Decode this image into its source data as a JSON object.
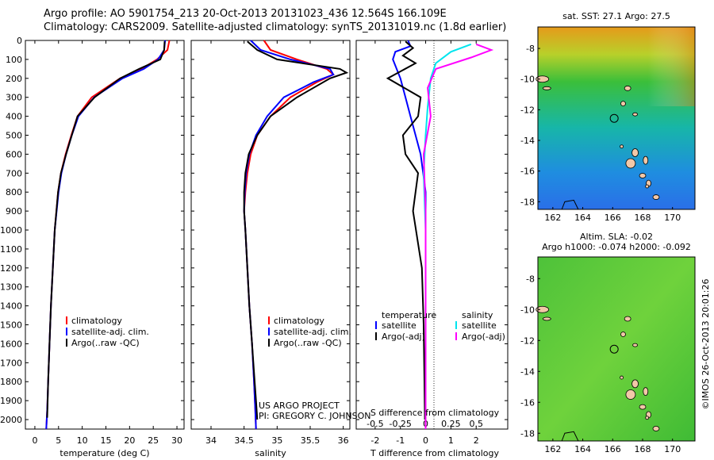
{
  "title": {
    "line1": "Argo profile: AO 5901754_213 20-Oct-2013 20131023_436 12.564S 166.109E",
    "line2": "Climatology: CARS2009. Satellite-adjusted climatology: synTS_20131019.nc (1.8d earlier)"
  },
  "colors": {
    "climatology": "#ff0000",
    "satellite": "#0000ff",
    "argo": "#000000",
    "salinity_satellite": "#00e5ee",
    "salinity_argo": "#ff00ff"
  },
  "depth_axis": {
    "min": 0,
    "max": 2050,
    "ticks": [
      "0",
      "100",
      "200",
      "300",
      "400",
      "500",
      "600",
      "700",
      "800",
      "900",
      "1000",
      "1100",
      "1200",
      "1300",
      "1400",
      "1500",
      "1600",
      "1700",
      "1800",
      "1900",
      "2000"
    ]
  },
  "chart_data": [
    {
      "type": "line",
      "name": "temperature-profile",
      "xlabel": "temperature (deg C)",
      "xlim": [
        -2,
        31.5
      ],
      "xticks": [
        "0",
        "5",
        "10",
        "15",
        "20",
        "25",
        "30"
      ],
      "series": [
        {
          "name": "climatology",
          "x": [
            28.4,
            28.0,
            25.8,
            22.5,
            18.0,
            12.0,
            9.0,
            7.7,
            6.5,
            5.5,
            4.9,
            4.2,
            3.8,
            3.4,
            3.1,
            2.8,
            2.6,
            2.4
          ],
          "depth": [
            0,
            50,
            100,
            150,
            200,
            300,
            400,
            500,
            600,
            700,
            800,
            1000,
            1200,
            1400,
            1600,
            1800,
            1950,
            2050
          ]
        },
        {
          "name": "satellite",
          "x": [
            27.5,
            27.3,
            26.0,
            23.0,
            18.5,
            12.5,
            9.2,
            7.8,
            6.6,
            5.6,
            5.0,
            4.2,
            3.8,
            3.4,
            3.1,
            2.8,
            2.6,
            2.4
          ],
          "depth": [
            0,
            50,
            100,
            150,
            200,
            300,
            400,
            500,
            600,
            700,
            800,
            1000,
            1200,
            1400,
            1600,
            1800,
            1950,
            2050
          ]
        },
        {
          "name": "argo",
          "x": [
            27.4,
            27.3,
            26.5,
            22.0,
            18.0,
            12.6,
            9.0,
            7.8,
            6.6,
            5.5,
            4.9,
            4.2,
            3.8,
            3.4,
            3.1,
            2.8,
            2.6
          ],
          "depth": [
            5,
            50,
            100,
            150,
            200,
            300,
            400,
            500,
            600,
            700,
            800,
            1000,
            1200,
            1400,
            1600,
            1800,
            1990
          ]
        }
      ],
      "legend": [
        "climatology",
        "satellite-adj. clim.",
        "Argo(..raw -QC)"
      ]
    },
    {
      "type": "line",
      "name": "salinity-profile",
      "xlabel": "salinity",
      "xlim": [
        33.7,
        36.1
      ],
      "xticks": [
        "34",
        "34.5",
        "35",
        "35.5",
        "36"
      ],
      "series": [
        {
          "name": "climatology",
          "x": [
            34.8,
            34.9,
            35.3,
            35.75,
            35.85,
            35.6,
            35.2,
            34.9,
            34.7,
            34.6,
            34.55,
            34.52,
            34.5,
            34.52,
            34.55,
            34.58,
            34.62,
            34.65,
            34.67,
            34.68
          ],
          "depth": [
            0,
            50,
            100,
            150,
            180,
            220,
            300,
            400,
            500,
            600,
            700,
            800,
            900,
            1000,
            1200,
            1400,
            1600,
            1800,
            1950,
            2050
          ]
        },
        {
          "name": "satellite",
          "x": [
            34.6,
            34.75,
            35.2,
            35.8,
            35.85,
            35.55,
            35.1,
            34.85,
            34.68,
            34.58,
            34.53,
            34.51,
            34.5,
            34.52,
            34.55,
            34.58,
            34.62,
            34.65,
            34.67,
            34.68
          ],
          "depth": [
            0,
            50,
            100,
            150,
            180,
            220,
            300,
            400,
            500,
            600,
            700,
            800,
            900,
            1000,
            1200,
            1400,
            1600,
            1800,
            1950,
            2050
          ]
        },
        {
          "name": "argo",
          "x": [
            34.55,
            34.7,
            35.0,
            35.95,
            36.05,
            35.8,
            35.3,
            34.9,
            34.7,
            34.57,
            34.52,
            34.5,
            34.5,
            34.52,
            34.55,
            34.58,
            34.62,
            34.66,
            34.68,
            34.7
          ],
          "depth": [
            5,
            50,
            100,
            150,
            170,
            200,
            300,
            400,
            500,
            600,
            700,
            800,
            900,
            1000,
            1200,
            1400,
            1600,
            1800,
            1900,
            2000
          ]
        }
      ],
      "legend": [
        "climatology",
        "satellite-adj. clim.",
        "Argo(..raw -QC)"
      ]
    },
    {
      "type": "line",
      "name": "difference-profile",
      "xlabel_top": "S difference from climatology",
      "xlabel": "T difference from climatology",
      "t_xlim": [
        -2.75,
        3.25
      ],
      "t_xticks": [
        "-2",
        "-1",
        "0",
        "1",
        "2"
      ],
      "s_xticks": [
        "-0.5",
        "-0.25",
        "0",
        "0.25",
        "0.5"
      ],
      "series": [
        {
          "name": "temperature satellite",
          "x": [
            -0.7,
            -0.6,
            -1.2,
            -1.3,
            -1.0,
            -0.8,
            -0.6,
            -0.4,
            -0.2,
            -0.1,
            0,
            0,
            0,
            0,
            0
          ],
          "depth": [
            0,
            30,
            60,
            100,
            200,
            300,
            400,
            500,
            600,
            700,
            800,
            1000,
            1400,
            1800,
            2050
          ]
        },
        {
          "name": "temperature argo",
          "x": [
            -0.8,
            -0.5,
            -0.9,
            -0.4,
            -1.5,
            -0.2,
            -0.3,
            -0.9,
            -0.8,
            -0.3,
            -0.5,
            -0.15,
            -0.08,
            -0.05,
            -0.03
          ],
          "depth": [
            5,
            40,
            80,
            120,
            200,
            300,
            400,
            500,
            600,
            700,
            900,
            1200,
            1500,
            1800,
            2000
          ]
        },
        {
          "name": "salinity satellite",
          "x": [
            0.45,
            0.25,
            0.1,
            0.05,
            0.02,
            0.0,
            -0.02,
            0,
            0,
            0
          ],
          "depth": [
            20,
            60,
            120,
            200,
            350,
            500,
            700,
            1000,
            1500,
            2050
          ]
        },
        {
          "name": "salinity argo",
          "x": [
            0.5,
            0.65,
            0.45,
            0.1,
            0.02,
            0.05,
            -0.02,
            0,
            0,
            0
          ],
          "depth": [
            20,
            50,
            90,
            150,
            250,
            400,
            600,
            900,
            1500,
            2050
          ]
        }
      ],
      "legend": {
        "temperature_heading": "temperature",
        "salinity_heading": "salinity",
        "temp_items": [
          "satellite",
          "Argo(-adj)"
        ],
        "sal_items": [
          "satellite",
          "Argo(-adj)"
        ]
      }
    },
    {
      "type": "heatmap",
      "name": "sst-map",
      "title": "sat. SST: 27.1  Argo: 27.5",
      "lon_ticks": [
        "162",
        "164",
        "166",
        "168",
        "170"
      ],
      "lat_ticks": [
        "-8",
        "-10",
        "-12",
        "-14",
        "-16",
        "-18"
      ],
      "lon_range": [
        161,
        171.5
      ],
      "lat_range": [
        -18.5,
        -6.6
      ],
      "float_position": {
        "lon": 166.1,
        "lat": -12.56
      }
    },
    {
      "type": "heatmap",
      "name": "sla-map",
      "title_line1": "Altim. SLA: -0.02",
      "title_line2": "Argo h1000: -0.074  h2000: -0.092",
      "lon_ticks": [
        "162",
        "164",
        "166",
        "168",
        "170"
      ],
      "lat_ticks": [
        "-8",
        "-10",
        "-12",
        "-14",
        "-16",
        "-18"
      ],
      "lon_range": [
        161,
        171.5
      ],
      "lat_range": [
        -18.5,
        -6.6
      ],
      "float_position": {
        "lon": 166.1,
        "lat": -12.56
      }
    }
  ],
  "credits": {
    "project": "US ARGO PROJECT",
    "pi": "PI: GREGORY C. JOHNSON",
    "timestamp": "©IMOS 26-Oct-2013 20:01:26"
  }
}
